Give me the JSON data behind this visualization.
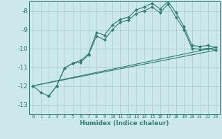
{
  "title": "",
  "xlabel": "Humidex (Indice chaleur)",
  "bg_color": "#cce8ea",
  "grid_color": "#aacfd4",
  "line_color": "#2e7d6e",
  "xlim": [
    -0.5,
    23.5
  ],
  "ylim": [
    -13.5,
    -7.5
  ],
  "yticks": [
    -13,
    -12,
    -11,
    -10,
    -9,
    -8
  ],
  "xticks": [
    0,
    1,
    2,
    3,
    4,
    5,
    6,
    7,
    8,
    9,
    10,
    11,
    12,
    13,
    14,
    15,
    16,
    17,
    18,
    19,
    20,
    21,
    22,
    23
  ],
  "line1_x": [
    0,
    1,
    2,
    3,
    4,
    5,
    6,
    7,
    8,
    9,
    10,
    11,
    12,
    13,
    14,
    15,
    16,
    17,
    18,
    19,
    20,
    21,
    22,
    23
  ],
  "line1_y": [
    -12.0,
    -12.35,
    -12.55,
    -12.0,
    -11.05,
    -10.8,
    -10.75,
    -10.35,
    -9.35,
    -9.55,
    -9.0,
    -8.6,
    -8.5,
    -8.15,
    -8.0,
    -7.8,
    -8.1,
    -7.65,
    -8.35,
    -9.0,
    -10.0,
    -10.05,
    -10.0,
    -10.1
  ],
  "line2_x": [
    2,
    3,
    4,
    5,
    6,
    7,
    8,
    9,
    10,
    11,
    12,
    13,
    14,
    15,
    16,
    17,
    18,
    19,
    20,
    21,
    22,
    23
  ],
  "line2_y": [
    -12.55,
    -12.0,
    -11.05,
    -10.8,
    -10.65,
    -10.3,
    -9.15,
    -9.3,
    -8.75,
    -8.45,
    -8.35,
    -7.95,
    -7.8,
    -7.6,
    -7.9,
    -7.5,
    -8.1,
    -8.85,
    -9.85,
    -9.9,
    -9.85,
    -9.95
  ],
  "line3_x": [
    0,
    23
  ],
  "line3_y": [
    -12.0,
    -10.1
  ],
  "line4_x": [
    0,
    23
  ],
  "line4_y": [
    -12.0,
    -9.95
  ]
}
